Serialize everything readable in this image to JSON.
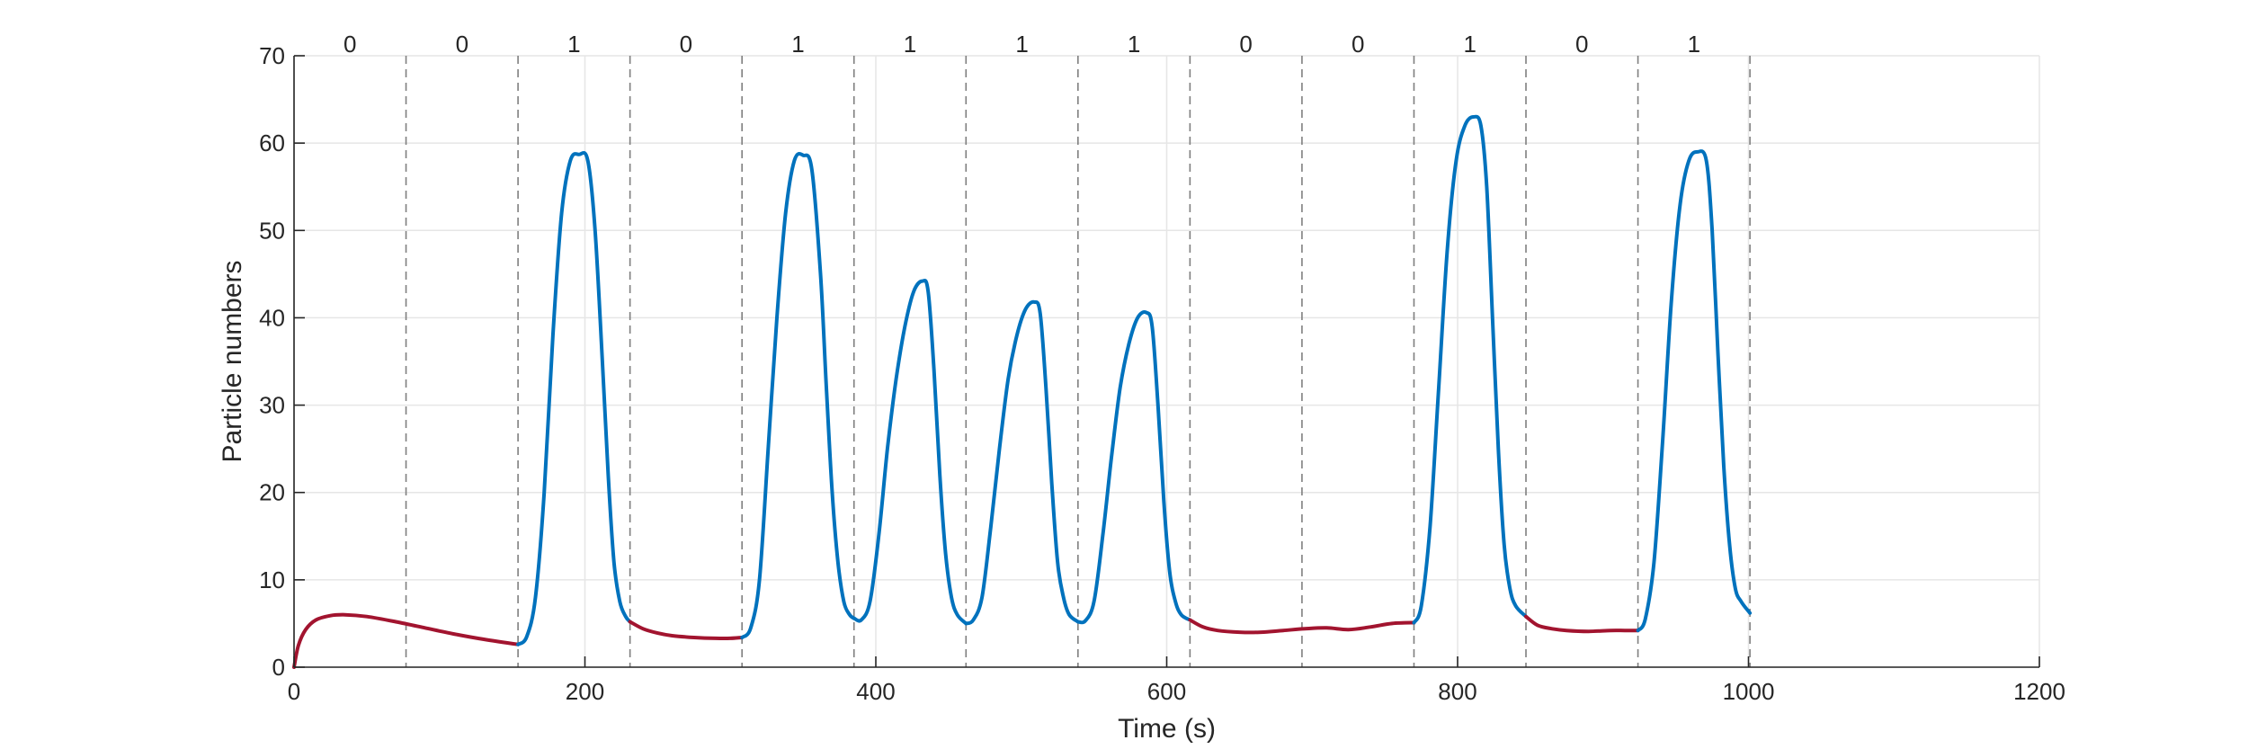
{
  "chart_data": {
    "type": "line",
    "title": "",
    "xlabel": "Time (s)",
    "ylabel": "Particle numbers",
    "xlim": [
      0,
      1200
    ],
    "ylim": [
      0,
      70
    ],
    "x_ticks": [
      0,
      200,
      400,
      600,
      800,
      1000,
      1200
    ],
    "x_tick_labels": [
      "0",
      "200",
      "400",
      "600",
      "800",
      "1000",
      "1200"
    ],
    "y_ticks": [
      0,
      10,
      20,
      30,
      40,
      50,
      60,
      70
    ],
    "y_tick_labels": [
      "0",
      "10",
      "20",
      "30",
      "40",
      "50",
      "60",
      "70"
    ],
    "grid": true,
    "colors": {
      "low": "#a2142f",
      "high": "#0072bd",
      "divider": "#7f7f7f",
      "grid": "#e6e6e6",
      "axis": "#262626"
    },
    "dividers": [
      77,
      154,
      231,
      308,
      385,
      462,
      539,
      616,
      693,
      770,
      847,
      924,
      1001
    ],
    "intervals": [
      {
        "label": "0",
        "start": 0,
        "end": 77
      },
      {
        "label": "0",
        "start": 77,
        "end": 154
      },
      {
        "label": "1",
        "start": 154,
        "end": 231
      },
      {
        "label": "0",
        "start": 231,
        "end": 308
      },
      {
        "label": "1",
        "start": 308,
        "end": 385
      },
      {
        "label": "1",
        "start": 385,
        "end": 462
      },
      {
        "label": "1",
        "start": 462,
        "end": 539
      },
      {
        "label": "1",
        "start": 539,
        "end": 616
      },
      {
        "label": "0",
        "start": 616,
        "end": 693
      },
      {
        "label": "0",
        "start": 693,
        "end": 770
      },
      {
        "label": "1",
        "start": 770,
        "end": 847
      },
      {
        "label": "0",
        "start": 847,
        "end": 924
      },
      {
        "label": "1",
        "start": 924,
        "end": 1001
      }
    ],
    "series": [
      {
        "color": "#a2142f",
        "x": [
          0,
          3,
          8,
          15,
          25,
          35,
          50,
          70,
          90,
          110,
          130,
          154
        ],
        "y": [
          0,
          2.5,
          4.3,
          5.4,
          5.9,
          6.0,
          5.8,
          5.2,
          4.5,
          3.8,
          3.2,
          2.6
        ]
      },
      {
        "color": "#0072bd",
        "x": [
          154,
          160,
          166,
          172,
          178,
          184,
          190,
          196,
          202,
          207,
          212,
          216,
          220,
          224,
          228,
          231
        ],
        "y": [
          2.6,
          3.5,
          8,
          20,
          38,
          52,
          58,
          58.7,
          58,
          50,
          35,
          22,
          12,
          7.5,
          5.8,
          5.2
        ]
      },
      {
        "color": "#a2142f",
        "x": [
          231,
          240,
          250,
          260,
          275,
          290,
          300,
          308
        ],
        "y": [
          5.2,
          4.4,
          3.9,
          3.6,
          3.4,
          3.3,
          3.3,
          3.4
        ]
      },
      {
        "color": "#0072bd",
        "x": [
          308,
          314,
          320,
          326,
          332,
          338,
          344,
          350,
          356,
          362,
          366,
          370,
          374,
          378,
          382,
          385
        ],
        "y": [
          3.4,
          4.5,
          10,
          25,
          40,
          52,
          58,
          58.6,
          57,
          45,
          32,
          20,
          12,
          7.5,
          6,
          5.6
        ]
      },
      {
        "color": "#0072bd",
        "x": [
          385,
          390,
          396,
          402,
          408,
          414,
          420,
          426,
          432,
          436,
          440,
          444,
          448,
          452,
          456,
          462
        ],
        "y": [
          5.6,
          5.4,
          7.5,
          15,
          25,
          33,
          39,
          43,
          44.2,
          43,
          34,
          22,
          13,
          8,
          6,
          5
        ]
      },
      {
        "color": "#0072bd",
        "x": [
          462,
          467,
          473,
          479,
          485,
          491,
          497,
          503,
          509,
          513,
          517,
          521,
          525,
          529,
          533,
          539
        ],
        "y": [
          5,
          5.4,
          8,
          16,
          25,
          33,
          38,
          41,
          41.8,
          40.5,
          32,
          21,
          12,
          8,
          6,
          5.2
        ]
      },
      {
        "color": "#0072bd",
        "x": [
          539,
          544,
          550,
          556,
          562,
          568,
          574,
          580,
          586,
          590,
          594,
          598,
          602,
          606,
          610,
          616
        ],
        "y": [
          5.2,
          5.3,
          7.5,
          15,
          24,
          32,
          37,
          40,
          40.6,
          39,
          30,
          19,
          11,
          7.5,
          6,
          5.4
        ]
      },
      {
        "color": "#a2142f",
        "x": [
          616,
          625,
          635,
          650,
          665,
          680,
          695,
          710,
          725,
          740,
          755,
          770
        ],
        "y": [
          5.4,
          4.6,
          4.2,
          4.0,
          4.0,
          4.2,
          4.4,
          4.5,
          4.3,
          4.6,
          5.0,
          5.1
        ]
      },
      {
        "color": "#0072bd",
        "x": [
          770,
          775,
          781,
          787,
          793,
          799,
          805,
          811,
          816,
          820,
          824,
          828,
          832,
          836,
          840,
          847
        ],
        "y": [
          5.1,
          7,
          16,
          32,
          48,
          58,
          62,
          63,
          62,
          55,
          40,
          25,
          14,
          9,
          7,
          5.8
        ]
      },
      {
        "color": "#a2142f",
        "x": [
          847,
          855,
          865,
          875,
          890,
          905,
          915,
          924
        ],
        "y": [
          5.8,
          4.8,
          4.4,
          4.2,
          4.1,
          4.2,
          4.2,
          4.2
        ]
      },
      {
        "color": "#0072bd",
        "x": [
          924,
          929,
          935,
          941,
          947,
          953,
          959,
          965,
          971,
          975,
          979,
          983,
          987,
          991,
          995,
          1001
        ],
        "y": [
          4.2,
          5.5,
          12,
          26,
          42,
          53,
          58,
          59,
          58,
          50,
          36,
          23,
          14,
          9,
          7.5,
          6.2
        ]
      }
    ]
  }
}
